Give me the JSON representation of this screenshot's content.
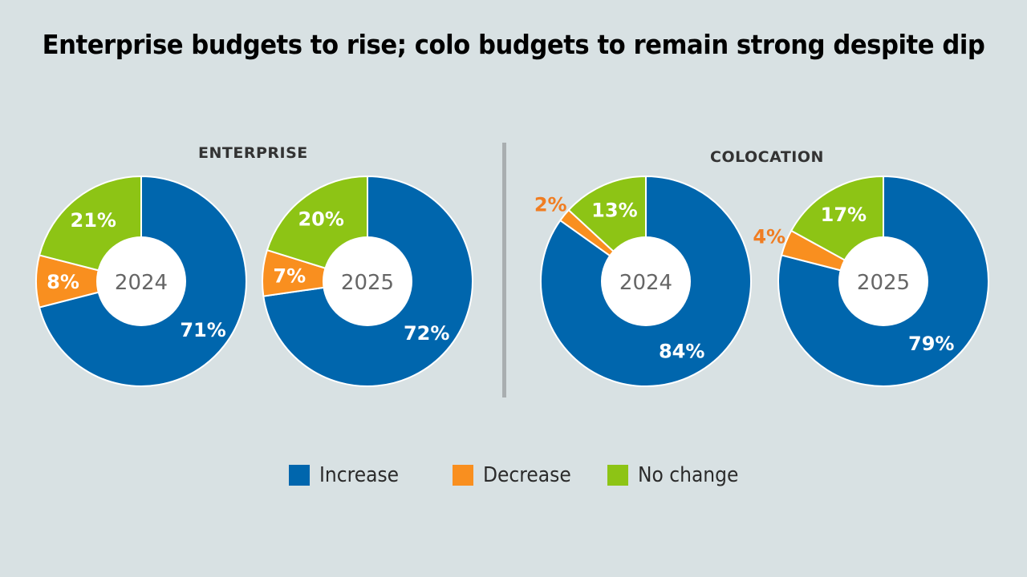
{
  "title": "Enterprise budgets to rise; colo budgets to remain strong despite dip",
  "colors": {
    "increase": "#0066ad",
    "decrease": "#f98f1f",
    "no_change": "#8dc415",
    "outside_label": "#f07d22",
    "center_text": "#666666",
    "background": "#d8e1e3"
  },
  "sections": [
    {
      "label": "ENTERPRISE"
    },
    {
      "label": "COLOCATION"
    }
  ],
  "legend": [
    {
      "key": "increase",
      "label": "Increase"
    },
    {
      "key": "decrease",
      "label": "Decrease"
    },
    {
      "key": "no_change",
      "label": "No change"
    }
  ],
  "chart_data": [
    {
      "type": "pie",
      "group": "ENTERPRISE",
      "center_label": "2024",
      "slices": [
        {
          "name": "Increase",
          "value": 71,
          "label": "71%"
        },
        {
          "name": "Decrease",
          "value": 8,
          "label": "8%"
        },
        {
          "name": "No change",
          "value": 21,
          "label": "21%"
        }
      ]
    },
    {
      "type": "pie",
      "group": "ENTERPRISE",
      "center_label": "2025",
      "slices": [
        {
          "name": "Increase",
          "value": 72,
          "label": "72%"
        },
        {
          "name": "Decrease",
          "value": 7,
          "label": "7%"
        },
        {
          "name": "No change",
          "value": 20,
          "label": "20%"
        }
      ]
    },
    {
      "type": "pie",
      "group": "COLOCATION",
      "center_label": "2024",
      "slices": [
        {
          "name": "Increase",
          "value": 84,
          "label": "84%"
        },
        {
          "name": "Decrease",
          "value": 2,
          "label": "2%"
        },
        {
          "name": "No change",
          "value": 13,
          "label": "13%"
        }
      ]
    },
    {
      "type": "pie",
      "group": "COLOCATION",
      "center_label": "2025",
      "slices": [
        {
          "name": "Increase",
          "value": 79,
          "label": "79%"
        },
        {
          "name": "Decrease",
          "value": 4,
          "label": "4%"
        },
        {
          "name": "No change",
          "value": 17,
          "label": "17%"
        }
      ]
    }
  ]
}
